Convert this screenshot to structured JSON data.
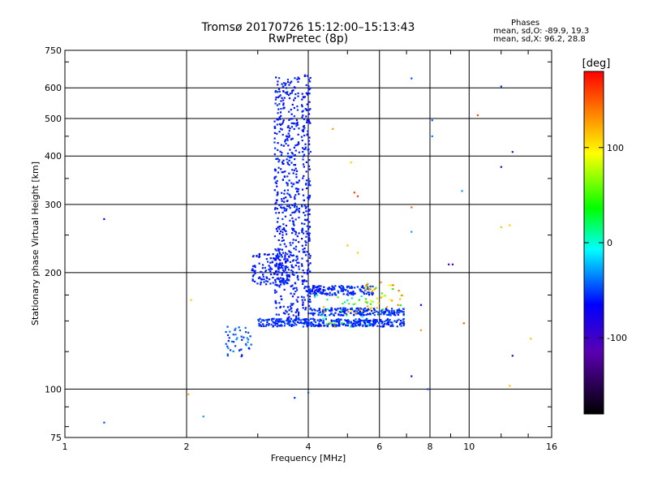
{
  "header": {
    "title_line1": "Tromsø 20170726 15:12:00–15:13:43",
    "title_line2": "RwPretec (8p)",
    "stats_title": "Phases",
    "stats_o": "mean, sd,O: -89.9, 19.3",
    "stats_x": "mean, sd,X:  96.2, 28.8"
  },
  "colorbar": {
    "unit_label": "[deg]",
    "ticks": [
      {
        "value": 100,
        "label": "100"
      },
      {
        "value": 0,
        "label": "0"
      },
      {
        "value": -100,
        "label": "-100"
      }
    ],
    "range": [
      -180,
      180
    ]
  },
  "chart_data": {
    "type": "scatter",
    "title": "Tromsø 20170726 15:12:00–15:13:43",
    "subtitle": "RwPretec (8p)",
    "xlabel": "Frequency [MHz]",
    "ylabel": "Stationary phase Virtual Height [km]",
    "x_scale": "log",
    "y_scale": "log",
    "xlim": [
      1,
      16
    ],
    "ylim": [
      75,
      750
    ],
    "x_ticks": [
      1,
      2,
      4,
      6,
      8,
      10,
      16
    ],
    "x_tick_labels": [
      "1",
      "2",
      "4",
      "6",
      "8",
      "10",
      "16"
    ],
    "x_grid": [
      2,
      4,
      6,
      8,
      10
    ],
    "y_ticks": [
      75,
      100,
      200,
      300,
      400,
      500,
      600,
      750
    ],
    "y_tick_labels": [
      "75",
      "100",
      "200",
      "300",
      "400",
      "500",
      "600",
      "750"
    ],
    "y_grid": [
      100,
      200,
      300,
      400,
      500,
      600
    ],
    "color_encoding": "phase [deg]",
    "grid": true,
    "series": [
      {
        "regions": [
          {
            "x": [
              3.3,
              3.8
            ],
            "y": [
              150,
              640
            ],
            "n": 520,
            "phase": [
              -100,
              -75
            ]
          },
          {
            "x": [
              3.85,
              4.05
            ],
            "y": [
              160,
              650
            ],
            "n": 200,
            "phase": [
              -100,
              -80
            ]
          },
          {
            "x": [
              3.0,
              6.9
            ],
            "y": [
              145,
              152
            ],
            "n": 360,
            "phase": [
              -100,
              -60
            ]
          },
          {
            "x": [
              4.0,
              6.9
            ],
            "y": [
              155,
              162
            ],
            "n": 200,
            "phase": [
              -100,
              -60
            ]
          },
          {
            "x": [
              4.0,
              5.8
            ],
            "y": [
              175,
              185
            ],
            "n": 150,
            "phase": [
              -100,
              -70
            ]
          },
          {
            "x": [
              2.9,
              3.6
            ],
            "y": [
              185,
              225
            ],
            "n": 130,
            "phase": [
              -100,
              -75
            ]
          },
          {
            "x": [
              2.5,
              2.9
            ],
            "y": [
              120,
              145
            ],
            "n": 45,
            "phase": [
              -95,
              -40
            ]
          },
          {
            "x": [
              5.5,
              6.9
            ],
            "y": [
              160,
              190
            ],
            "n": 40,
            "phase": [
              40,
              150
            ]
          },
          {
            "x": [
              4.0,
              5.8
            ],
            "y": [
              145,
              175
            ],
            "n": 40,
            "phase": [
              -20,
              140
            ]
          }
        ],
        "points": [
          {
            "x": 1.25,
            "y": 275,
            "phase": -100
          },
          {
            "x": 1.25,
            "y": 82,
            "phase": -70
          },
          {
            "x": 2.02,
            "y": 97,
            "phase": 120
          },
          {
            "x": 2.2,
            "y": 85,
            "phase": -40
          },
          {
            "x": 2.05,
            "y": 170,
            "phase": 110
          },
          {
            "x": 3.7,
            "y": 95,
            "phase": -80
          },
          {
            "x": 4.0,
            "y": 98,
            "phase": -60
          },
          {
            "x": 4.6,
            "y": 470,
            "phase": 130
          },
          {
            "x": 5.1,
            "y": 385,
            "phase": 110
          },
          {
            "x": 5.2,
            "y": 322,
            "phase": 160
          },
          {
            "x": 5.3,
            "y": 315,
            "phase": 160
          },
          {
            "x": 5.0,
            "y": 235,
            "phase": 115
          },
          {
            "x": 5.3,
            "y": 225,
            "phase": 110
          },
          {
            "x": 7.2,
            "y": 635,
            "phase": -70
          },
          {
            "x": 7.2,
            "y": 295,
            "phase": 150
          },
          {
            "x": 7.2,
            "y": 255,
            "phase": -40
          },
          {
            "x": 7.2,
            "y": 108,
            "phase": -110
          },
          {
            "x": 7.6,
            "y": 165,
            "phase": -100
          },
          {
            "x": 7.6,
            "y": 142,
            "phase": 130
          },
          {
            "x": 7.9,
            "y": 100,
            "phase": -70
          },
          {
            "x": 8.1,
            "y": 495,
            "phase": -60
          },
          {
            "x": 8.1,
            "y": 450,
            "phase": -50
          },
          {
            "x": 8.9,
            "y": 210,
            "phase": -120
          },
          {
            "x": 9.1,
            "y": 210,
            "phase": -120
          },
          {
            "x": 9.6,
            "y": 325,
            "phase": -40
          },
          {
            "x": 9.7,
            "y": 148,
            "phase": 150
          },
          {
            "x": 10.5,
            "y": 510,
            "phase": 160
          },
          {
            "x": 12.0,
            "y": 605,
            "phase": -80
          },
          {
            "x": 12.0,
            "y": 375,
            "phase": -95
          },
          {
            "x": 12.0,
            "y": 262,
            "phase": 115
          },
          {
            "x": 12.8,
            "y": 410,
            "phase": -135
          },
          {
            "x": 12.6,
            "y": 265,
            "phase": 110
          },
          {
            "x": 12.8,
            "y": 122,
            "phase": -110
          },
          {
            "x": 12.6,
            "y": 102,
            "phase": 115
          },
          {
            "x": 14.2,
            "y": 135,
            "phase": 115
          }
        ]
      }
    ]
  }
}
